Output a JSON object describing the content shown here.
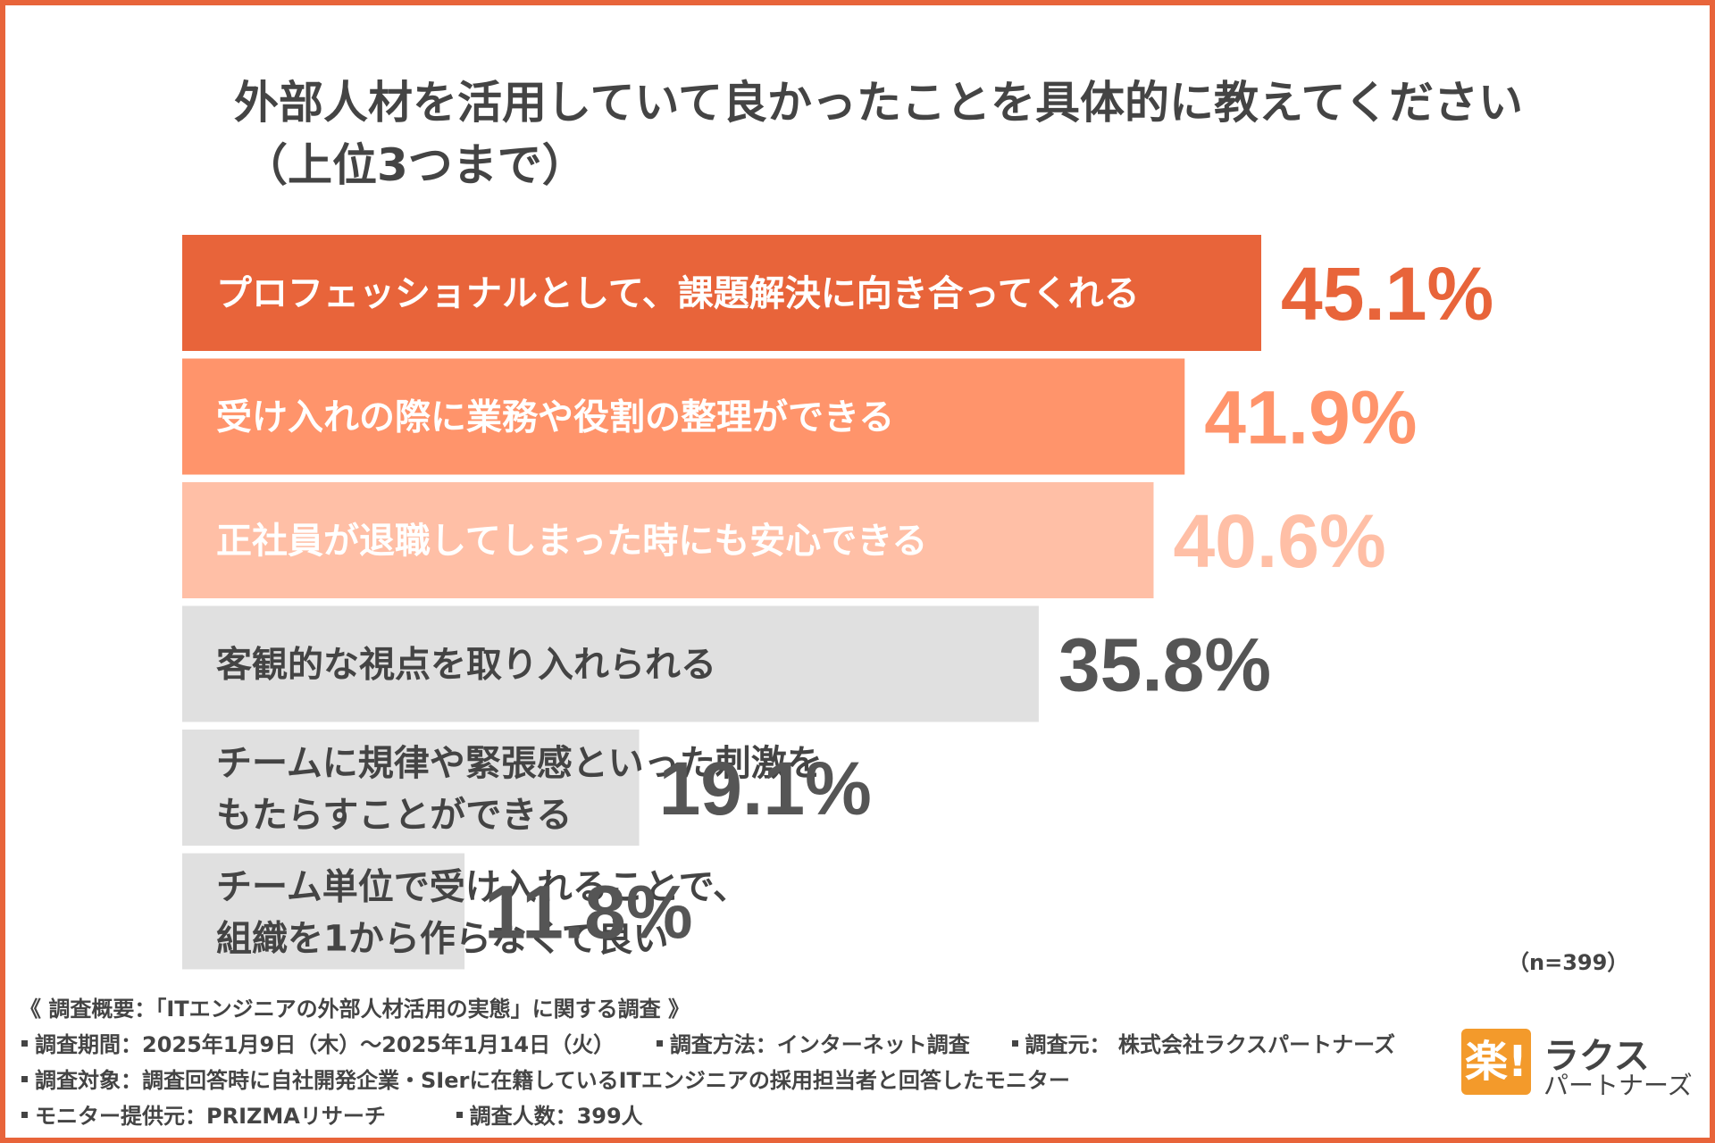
{
  "title_line1": "外部人材を活用していて良かったことを具体的に教えてください",
  "title_line2": "（上位3つまで）",
  "sample_note": "（n=399）",
  "chart_data": {
    "type": "bar",
    "orientation": "horizontal",
    "title": "外部人材を活用していて良かったことを具体的に教えてください（上位3つまで）",
    "categories": [
      [
        "プロフェッショナルとして、課題解決に向き合ってくれる"
      ],
      [
        "受け入れの際に業務や役割の整理ができる"
      ],
      [
        "正社員が退職してしまった時にも安心できる"
      ],
      [
        "客観的な視点を取り入れられる"
      ],
      [
        "チームに規律や緊張感といった刺激を",
        "もたらすことができる"
      ],
      [
        "チーム単位で受け入れることで、",
        "組織を1から作らなくて良い"
      ]
    ],
    "values": [
      45.1,
      41.9,
      40.6,
      35.8,
      19.1,
      11.8
    ],
    "value_labels": [
      "45.1%",
      "41.9%",
      "40.6%",
      "35.8%",
      "19.1%",
      "11.8%"
    ],
    "bar_colors": [
      "#E8643A",
      "#FF946B",
      "#FFBFA6",
      "#E0E0E0",
      "#E0E0E0",
      "#E0E0E0"
    ],
    "label_colors": [
      "#FFFFFF",
      "#FFFFFF",
      "#FFFFFF",
      "#444444",
      "#444444",
      "#444444"
    ],
    "value_colors": [
      "#E8643A",
      "#FF946B",
      "#FFBFA6",
      "#555555",
      "#555555",
      "#555555"
    ],
    "unit": "%",
    "xlim": [
      0,
      45.1
    ],
    "grid": false,
    "legend": "none"
  },
  "footer": {
    "heading": "《 調査概要：「ITエンジニアの外部人材活用の実態」に関する調査 》",
    "period": "調査期間：2025年1月9日（木）〜2025年1月14日（火）",
    "method": "調査方法：インターネット調査",
    "source": "調査元： 株式会社ラクスパートナーズ",
    "target": "調査対象：調査回答時に自社開発企業・SIerに在籍しているITエンジニアの採用担当者と回答したモニター",
    "provider": "モニター提供元：PRIZMAリサーチ",
    "respondents": "調査人数：399人"
  },
  "logo": {
    "mark": "楽!",
    "name": "ラクス",
    "sub": "パートナーズ"
  },
  "colors": {
    "frame": "#E8643A",
    "text": "#444444",
    "logo_mark": "#F39A2B"
  }
}
